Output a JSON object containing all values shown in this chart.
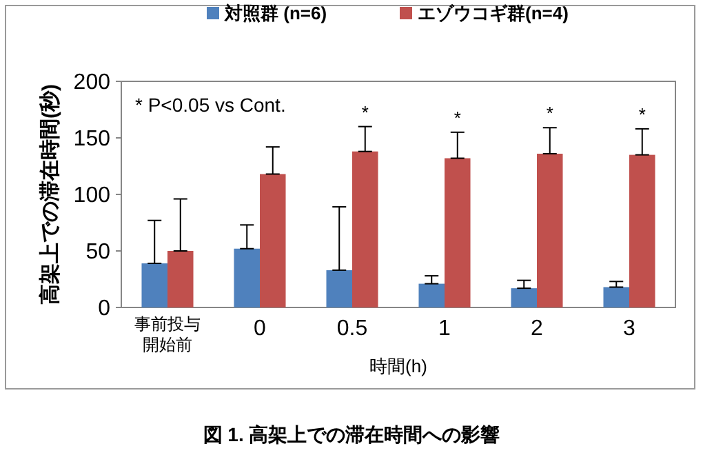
{
  "chart_data": {
    "type": "bar",
    "title": "図 1. 高架上での滞在時間への影響",
    "xlabel": "時間(h)",
    "ylabel": "高架上での滞在時間(秒)",
    "categories": [
      "事前投与開始前",
      "0",
      "0.5",
      "1",
      "2",
      "3"
    ],
    "series": [
      {
        "name": "対照群 (n=6)",
        "color": "#4f81bd",
        "values": [
          39,
          52,
          33,
          21,
          17,
          18
        ],
        "errors": [
          [
            39,
            77
          ],
          [
            52,
            73
          ],
          [
            33,
            89
          ],
          [
            21,
            28
          ],
          [
            17,
            24
          ],
          [
            18,
            23
          ]
        ]
      },
      {
        "name": "エゾウコギ群(n=4)",
        "color": "#c0504d",
        "values": [
          50,
          118,
          138,
          132,
          136,
          135
        ],
        "errors": [
          [
            50,
            96
          ],
          [
            118,
            142
          ],
          [
            138,
            160
          ],
          [
            132,
            155
          ],
          [
            136,
            159
          ],
          [
            135,
            158
          ]
        ]
      }
    ],
    "ylim": [
      0,
      200
    ],
    "yticks": [
      0,
      50,
      100,
      150,
      200
    ],
    "grid": false,
    "legend": "top",
    "annotations": [
      "* P<0.05 vs Cont.",
      {
        "text": "*",
        "x": "0.5",
        "y": 160
      },
      {
        "text": "*",
        "x": "1",
        "y": 155
      },
      {
        "text": "*",
        "x": "2",
        "y": 159
      },
      {
        "text": "*",
        "x": "3",
        "y": 158
      }
    ]
  }
}
